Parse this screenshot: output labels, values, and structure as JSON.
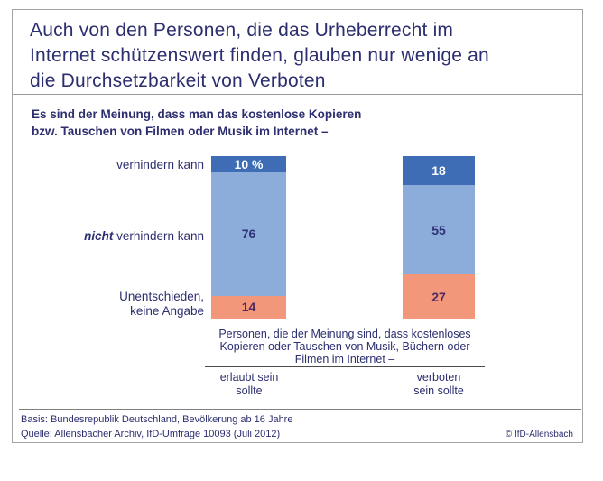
{
  "title": {
    "lines": [
      "Auch von den Personen, die das Urheberrecht im",
      "Internet schützenswert finden, glauben nur wenige an",
      "die Durchsetzbarkeit von Verboten"
    ]
  },
  "subtitle": {
    "lines": [
      "Es sind der Meinung, dass man das kostenlose Kopieren",
      "bzw. Tauschen von Filmen oder Musik im Internet –"
    ]
  },
  "row_labels": {
    "top": "verhindern kann",
    "middle_italic": "nicht",
    "middle_rest": " verhindern kann",
    "bottom_line1": "Unentschieden,",
    "bottom_line2": "keine Angabe"
  },
  "annotation": {
    "lines": [
      "Personen, die der Meinung sind, dass kostenloses",
      "Kopieren oder Tauschen von Musik, Büchern oder",
      "Filmen im Internet –"
    ]
  },
  "column_labels": {
    "left_line1": "erlaubt sein",
    "left_line2": "sollte",
    "right_line1": "verboten",
    "right_line2": "sein sollte"
  },
  "footer": {
    "basis": "Basis: Bundesrepublik Deutschland, Bevölkerung ab 16 Jahre",
    "quelle": "Quelle: Allensbacher Archiv, IfD-Umfrage 10093 (Juli 2012)",
    "copyright": "© IfD-Allensbach"
  },
  "chart_data": {
    "type": "bar",
    "stacked": true,
    "orientation": "vertical",
    "unit": "percent",
    "title": "Auch von den Personen, die das Urheberrecht im Internet schützenswert finden, glauben nur wenige an die Durchsetzbarkeit von Verboten",
    "question": "Es sind der Meinung, dass man das kostenlose Kopieren bzw. Tauschen von Filmen oder Musik im Internet –",
    "categories": [
      "erlaubt sein sollte",
      "verboten sein sollte"
    ],
    "series": [
      {
        "name": "verhindern kann",
        "values": [
          10,
          18
        ],
        "display": [
          "10 %",
          "18"
        ],
        "color": "#3e6db5",
        "value_color": "#ffffff"
      },
      {
        "name": "nicht verhindern kann",
        "values": [
          76,
          55
        ],
        "display": [
          "76",
          "55"
        ],
        "color": "#8cacda",
        "value_color": "#2f3178"
      },
      {
        "name": "Unentschieden, keine Angabe",
        "values": [
          14,
          27
        ],
        "display": [
          "14",
          "27"
        ],
        "color": "#f2977a",
        "value_color": "#4e2a63"
      }
    ],
    "ylim": [
      0,
      100
    ],
    "grid": false,
    "legend_position": "left-row-labels"
  },
  "colors": {
    "text_navy": "#2c2e6f",
    "bar_dark_blue": "#3e6db5",
    "bar_light_blue": "#8cacda",
    "bar_salmon": "#f2977a",
    "frame_border": "#a3a3a3"
  }
}
